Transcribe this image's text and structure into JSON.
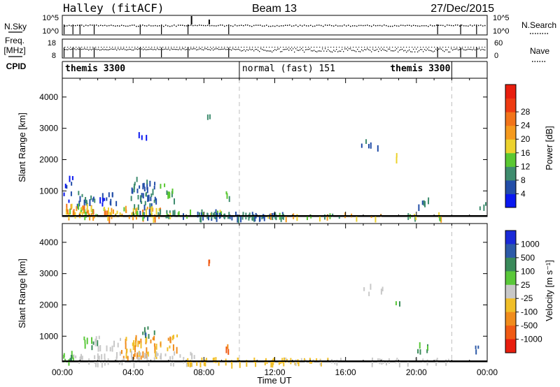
{
  "header": {
    "station": "Halley (fitACF)",
    "beam": "Beam 13",
    "date": "27/Dec/2015",
    "left_labels": [
      "N.Sky",
      "Freq.",
      "[MHz]",
      "CPID"
    ],
    "right_labels": [
      "N.Search",
      "Nave"
    ],
    "nsky_ticks": [
      "10^5",
      "10^0"
    ],
    "nsearch_ticks": [
      "10^5",
      "10^0"
    ],
    "freq_ticks": [
      "18",
      "8"
    ],
    "nave_ticks": [
      "60",
      "0"
    ]
  },
  "cpid": {
    "segments": [
      {
        "label": "themis 3300",
        "start_hour": 0.0,
        "end_hour": 10.0
      },
      {
        "label": "normal (fast) 151",
        "start_hour": 10.0,
        "end_hour": 22.0
      },
      {
        "label": "themis 3300",
        "start_hour": 22.0,
        "end_hour": 24.0
      }
    ]
  },
  "axes": {
    "ylabel": "Slant Range [km]",
    "xlabel": "Time UT",
    "x_tick_labels": [
      "00:00",
      "04:00",
      "08:00",
      "12:00",
      "16:00",
      "20:00",
      "00:00"
    ],
    "y_tick_labels": [
      "1000",
      "2000",
      "3000",
      "4000"
    ]
  },
  "colorbars": {
    "power": {
      "label": "Power [dB]",
      "tick_labels": [
        "4",
        "8",
        "12",
        "16",
        "20",
        "24",
        "28"
      ],
      "colors": [
        "#0a18f0",
        "#234ea8",
        "#3e8c6e",
        "#5ac832",
        "#ecd22e",
        "#f59a1e",
        "#f2741a",
        "#ee3b12",
        "#e81e0e"
      ]
    },
    "velocity": {
      "label": "Velocity [m s⁻¹]",
      "tick_labels": [
        "1000",
        "500",
        "100",
        "25",
        "-25",
        "-100",
        "-500",
        "-1000"
      ],
      "colors": [
        "#1a2ad8",
        "#2d5aa8",
        "#3a8a5a",
        "#5ac83a",
        "#c8c8c8",
        "#f0be28",
        "#f08c1c",
        "#f05a14",
        "#e81e0e"
      ]
    }
  },
  "chart_data": [
    {
      "type": "scatter",
      "title": "Power",
      "xlabel": "Time UT",
      "ylabel": "Slant Range [km]",
      "xlim": [
        0,
        24
      ],
      "ylim": [
        180,
        4600
      ],
      "grid": false,
      "dashed_vlines_hour": [
        10.0,
        22.0
      ],
      "clusters": [
        {
          "x": 0.3,
          "y": 1200,
          "value": 4,
          "count": 8,
          "dx": 0.3,
          "dy": 500
        },
        {
          "x": 1.3,
          "y": 800,
          "value": 8,
          "count": 16,
          "dx": 0.5,
          "dy": 220
        },
        {
          "x": 2.6,
          "y": 800,
          "value": 4,
          "count": 12,
          "dx": 0.5,
          "dy": 200
        },
        {
          "x": 4.5,
          "y": 1000,
          "value": 8,
          "count": 40,
          "dx": 0.8,
          "dy": 450
        },
        {
          "x": 4.4,
          "y": 2850,
          "value": 4,
          "count": 3,
          "dx": 0.6,
          "dy": 100
        },
        {
          "x": 6.0,
          "y": 1000,
          "value": 12,
          "count": 10,
          "dx": 0.5,
          "dy": 260
        },
        {
          "x": 8.2,
          "y": 3350,
          "value": 8,
          "count": 2,
          "dx": 0.1,
          "dy": 100
        },
        {
          "x": 9.5,
          "y": 800,
          "value": 12,
          "count": 3,
          "dx": 0.3,
          "dy": 200
        },
        {
          "x": 0.8,
          "y": 400,
          "value": 20,
          "count": 40,
          "dx": 0.9,
          "dy": 200
        },
        {
          "x": 3.5,
          "y": 350,
          "value": 20,
          "count": 50,
          "dx": 2.0,
          "dy": 180
        },
        {
          "x": 6.5,
          "y": 300,
          "value": 12,
          "count": 40,
          "dx": 2.5,
          "dy": 120
        },
        {
          "x": 10.0,
          "y": 260,
          "value": 8,
          "count": 60,
          "dx": 2.5,
          "dy": 80
        },
        {
          "x": 16.5,
          "y": 260,
          "value": 16,
          "count": 30,
          "dx": 5.0,
          "dy": 60
        },
        {
          "x": 17.4,
          "y": 2550,
          "value": 8,
          "count": 5,
          "dx": 0.7,
          "dy": 150
        },
        {
          "x": 19.0,
          "y": 2150,
          "value": 16,
          "count": 2,
          "dx": 0.3,
          "dy": 60
        },
        {
          "x": 20.3,
          "y": 700,
          "value": 8,
          "count": 6,
          "dx": 0.4,
          "dy": 140
        },
        {
          "x": 23.6,
          "y": 600,
          "value": 12,
          "count": 3,
          "dx": 0.3,
          "dy": 120
        }
      ]
    },
    {
      "type": "scatter",
      "title": "Velocity",
      "xlabel": "Time UT",
      "ylabel": "Slant Range [km]",
      "xlim": [
        0,
        24
      ],
      "ylim": [
        180,
        4600
      ],
      "grid": false,
      "dashed_vlines_hour": [
        10.0,
        22.0
      ],
      "clusters": [
        {
          "x": 0.3,
          "y": 400,
          "value": 100,
          "count": 10,
          "dx": 0.3,
          "dy": 150
        },
        {
          "x": 1.7,
          "y": 800,
          "value": 100,
          "count": 8,
          "dx": 0.5,
          "dy": 200
        },
        {
          "x": 2.6,
          "y": 800,
          "value": 0,
          "count": 12,
          "dx": 0.8,
          "dy": 250
        },
        {
          "x": 4.3,
          "y": 700,
          "value": -100,
          "count": 45,
          "dx": 1.0,
          "dy": 350
        },
        {
          "x": 4.7,
          "y": 1200,
          "value": 500,
          "count": 8,
          "dx": 0.5,
          "dy": 200
        },
        {
          "x": 6.0,
          "y": 800,
          "value": -100,
          "count": 12,
          "dx": 0.5,
          "dy": 260
        },
        {
          "x": 8.2,
          "y": 3350,
          "value": -500,
          "count": 2,
          "dx": 0.1,
          "dy": 100
        },
        {
          "x": 9.5,
          "y": 600,
          "value": -500,
          "count": 3,
          "dx": 0.3,
          "dy": 200
        },
        {
          "x": 4.0,
          "y": 350,
          "value": 0,
          "count": 60,
          "dx": 3.5,
          "dy": 180
        },
        {
          "x": 11.0,
          "y": 260,
          "value": -50,
          "count": 50,
          "dx": 4.0,
          "dy": 80
        },
        {
          "x": 17.0,
          "y": 260,
          "value": 0,
          "count": 30,
          "dx": 5.0,
          "dy": 60
        },
        {
          "x": 17.4,
          "y": 2550,
          "value": 0,
          "count": 5,
          "dx": 0.7,
          "dy": 150
        },
        {
          "x": 19.0,
          "y": 2150,
          "value": 100,
          "count": 2,
          "dx": 0.3,
          "dy": 60
        },
        {
          "x": 20.3,
          "y": 700,
          "value": 100,
          "count": 6,
          "dx": 0.4,
          "dy": 140
        },
        {
          "x": 23.6,
          "y": 600,
          "value": 500,
          "count": 3,
          "dx": 0.3,
          "dy": 120
        }
      ]
    }
  ]
}
